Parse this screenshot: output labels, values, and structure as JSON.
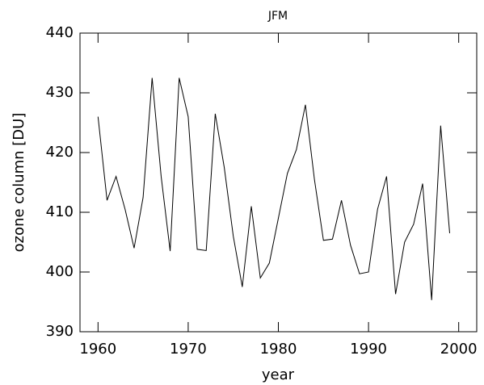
{
  "chart_data": {
    "type": "line",
    "title": "JFM",
    "x_label": "year",
    "y_label": "ozone column [DU]",
    "x": [
      1960,
      1961,
      1962,
      1963,
      1964,
      1965,
      1966,
      1967,
      1968,
      1969,
      1970,
      1971,
      1972,
      1973,
      1974,
      1975,
      1976,
      1977,
      1978,
      1979,
      1980,
      1981,
      1982,
      1983,
      1984,
      1985,
      1986,
      1987,
      1988,
      1989,
      1990,
      1991,
      1992,
      1993,
      1994,
      1995,
      1996,
      1997,
      1998,
      1999
    ],
    "series": [
      {
        "name": "JFM",
        "color": "#000000",
        "values": [
          426,
          412,
          416,
          410.5,
          404,
          412.5,
          432.5,
          416,
          403.5,
          432.5,
          426,
          403.8,
          403.6,
          426.5,
          417.5,
          406,
          397.5,
          411,
          399,
          401.5,
          409,
          416.5,
          420.5,
          428,
          415.5,
          405.3,
          405.5,
          412,
          404.5,
          399.7,
          400,
          410.5,
          416,
          396.3,
          405,
          408,
          414.8,
          395.3,
          424.5,
          406.5
        ]
      }
    ],
    "xlim": [
      1958,
      2002
    ],
    "xticks": [
      1960,
      1970,
      1980,
      1990,
      2000
    ],
    "ylim": [
      390,
      440
    ],
    "yticks": [
      390,
      400,
      410,
      420,
      430,
      440
    ]
  }
}
